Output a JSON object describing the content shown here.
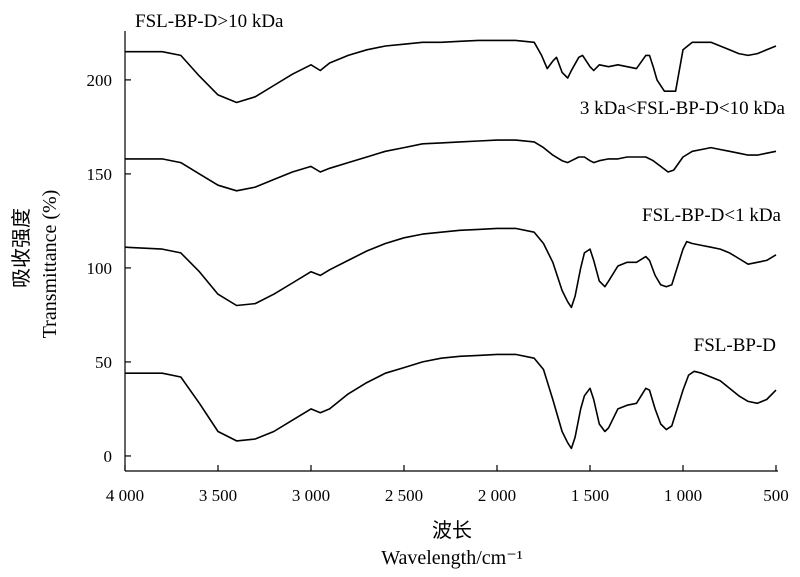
{
  "chart_data": {
    "type": "line",
    "xlabel_cn": "波长",
    "xlabel": "Wavelength/cm⁻¹",
    "ylabel_cn": "吸收强度",
    "ylabel": "Transmittance (%)",
    "xlim": [
      4000,
      500
    ],
    "ylim": [
      -8,
      226
    ],
    "x_ticks": [
      4000,
      3500,
      3000,
      2500,
      2000,
      1500,
      1000,
      500
    ],
    "x_tick_labels": [
      "4 000",
      "3 500",
      "3 000",
      "2 500",
      "2 000",
      "1 500",
      "1 000",
      "500"
    ],
    "y_ticks": [
      0,
      50,
      100,
      150,
      200
    ],
    "y_tick_labels": [
      "0",
      "50",
      "100",
      "150",
      "200"
    ],
    "grid": false,
    "series": [
      {
        "name": "FSL-BP-D>10 kDa",
        "points": [
          [
            4000,
            215
          ],
          [
            3800,
            215
          ],
          [
            3700,
            213
          ],
          [
            3600,
            202
          ],
          [
            3500,
            192
          ],
          [
            3400,
            188
          ],
          [
            3300,
            191
          ],
          [
            3200,
            197
          ],
          [
            3100,
            203
          ],
          [
            3000,
            208
          ],
          [
            2950,
            205
          ],
          [
            2900,
            209
          ],
          [
            2800,
            213
          ],
          [
            2700,
            216
          ],
          [
            2600,
            218
          ],
          [
            2500,
            219
          ],
          [
            2400,
            220
          ],
          [
            2300,
            220
          ],
          [
            2200,
            220.5
          ],
          [
            2100,
            221
          ],
          [
            2000,
            221
          ],
          [
            1900,
            221
          ],
          [
            1800,
            220
          ],
          [
            1760,
            213
          ],
          [
            1730,
            206
          ],
          [
            1700,
            210
          ],
          [
            1680,
            212
          ],
          [
            1650,
            204
          ],
          [
            1620,
            201
          ],
          [
            1600,
            205
          ],
          [
            1560,
            212
          ],
          [
            1540,
            213
          ],
          [
            1500,
            207
          ],
          [
            1480,
            205
          ],
          [
            1450,
            208
          ],
          [
            1400,
            207
          ],
          [
            1350,
            208
          ],
          [
            1300,
            207
          ],
          [
            1250,
            206
          ],
          [
            1200,
            213
          ],
          [
            1180,
            213
          ],
          [
            1160,
            207
          ],
          [
            1140,
            200
          ],
          [
            1100,
            194
          ],
          [
            1060,
            194
          ],
          [
            1040,
            194
          ],
          [
            1000,
            216
          ],
          [
            950,
            220
          ],
          [
            900,
            220
          ],
          [
            850,
            220
          ],
          [
            800,
            218
          ],
          [
            750,
            216
          ],
          [
            700,
            214
          ],
          [
            650,
            213
          ],
          [
            600,
            214
          ],
          [
            550,
            216
          ],
          [
            500,
            218
          ]
        ]
      },
      {
        "name": "3 kDa<FSL-BP-D<10 kDa",
        "points": [
          [
            4000,
            158
          ],
          [
            3800,
            158
          ],
          [
            3700,
            156
          ],
          [
            3600,
            150
          ],
          [
            3500,
            144
          ],
          [
            3400,
            141
          ],
          [
            3300,
            143
          ],
          [
            3200,
            147
          ],
          [
            3100,
            151
          ],
          [
            3000,
            154
          ],
          [
            2950,
            151
          ],
          [
            2900,
            153
          ],
          [
            2800,
            156
          ],
          [
            2700,
            159
          ],
          [
            2600,
            162
          ],
          [
            2500,
            164
          ],
          [
            2400,
            166
          ],
          [
            2300,
            166.5
          ],
          [
            2200,
            167
          ],
          [
            2100,
            167.5
          ],
          [
            2000,
            168
          ],
          [
            1900,
            168
          ],
          [
            1800,
            167
          ],
          [
            1750,
            164
          ],
          [
            1700,
            160
          ],
          [
            1650,
            157
          ],
          [
            1620,
            156
          ],
          [
            1600,
            157
          ],
          [
            1560,
            159
          ],
          [
            1530,
            159
          ],
          [
            1500,
            157
          ],
          [
            1480,
            156
          ],
          [
            1450,
            157
          ],
          [
            1400,
            158
          ],
          [
            1350,
            158
          ],
          [
            1300,
            159
          ],
          [
            1250,
            159
          ],
          [
            1200,
            159
          ],
          [
            1160,
            157
          ],
          [
            1120,
            154
          ],
          [
            1080,
            151
          ],
          [
            1050,
            152
          ],
          [
            1000,
            159
          ],
          [
            950,
            162
          ],
          [
            900,
            163
          ],
          [
            850,
            164
          ],
          [
            800,
            163
          ],
          [
            750,
            162
          ],
          [
            700,
            161
          ],
          [
            650,
            160
          ],
          [
            600,
            160
          ],
          [
            550,
            161
          ],
          [
            500,
            162
          ]
        ]
      },
      {
        "name": "FSL-BP-D<1 kDa",
        "points": [
          [
            4000,
            111
          ],
          [
            3800,
            110
          ],
          [
            3700,
            108
          ],
          [
            3600,
            98
          ],
          [
            3500,
            86
          ],
          [
            3400,
            80
          ],
          [
            3300,
            81
          ],
          [
            3200,
            86
          ],
          [
            3100,
            92
          ],
          [
            3000,
            98
          ],
          [
            2950,
            96
          ],
          [
            2900,
            99
          ],
          [
            2800,
            104
          ],
          [
            2700,
            109
          ],
          [
            2600,
            113
          ],
          [
            2500,
            116
          ],
          [
            2400,
            118
          ],
          [
            2300,
            119
          ],
          [
            2200,
            120
          ],
          [
            2100,
            120.5
          ],
          [
            2000,
            121
          ],
          [
            1900,
            121
          ],
          [
            1800,
            119
          ],
          [
            1750,
            113
          ],
          [
            1700,
            103
          ],
          [
            1650,
            88
          ],
          [
            1620,
            82
          ],
          [
            1600,
            79
          ],
          [
            1580,
            85
          ],
          [
            1550,
            100
          ],
          [
            1530,
            108
          ],
          [
            1500,
            110
          ],
          [
            1480,
            104
          ],
          [
            1450,
            93
          ],
          [
            1420,
            90
          ],
          [
            1400,
            93
          ],
          [
            1350,
            101
          ],
          [
            1300,
            103
          ],
          [
            1250,
            103
          ],
          [
            1200,
            106
          ],
          [
            1180,
            104
          ],
          [
            1150,
            96
          ],
          [
            1120,
            91
          ],
          [
            1090,
            90
          ],
          [
            1060,
            91
          ],
          [
            1000,
            110
          ],
          [
            980,
            114
          ],
          [
            950,
            113
          ],
          [
            900,
            112
          ],
          [
            850,
            111
          ],
          [
            800,
            110
          ],
          [
            750,
            108
          ],
          [
            700,
            105
          ],
          [
            650,
            102
          ],
          [
            600,
            103
          ],
          [
            550,
            104
          ],
          [
            500,
            107
          ]
        ]
      },
      {
        "name": "FSL-BP-D",
        "points": [
          [
            4000,
            44
          ],
          [
            3800,
            44
          ],
          [
            3700,
            42
          ],
          [
            3600,
            28
          ],
          [
            3500,
            13
          ],
          [
            3400,
            8
          ],
          [
            3300,
            9
          ],
          [
            3200,
            13
          ],
          [
            3100,
            19
          ],
          [
            3000,
            25
          ],
          [
            2950,
            23
          ],
          [
            2900,
            25
          ],
          [
            2800,
            33
          ],
          [
            2700,
            39
          ],
          [
            2600,
            44
          ],
          [
            2500,
            47
          ],
          [
            2400,
            50
          ],
          [
            2300,
            52
          ],
          [
            2200,
            53
          ],
          [
            2100,
            53.5
          ],
          [
            2000,
            54
          ],
          [
            1900,
            54
          ],
          [
            1800,
            52
          ],
          [
            1750,
            46
          ],
          [
            1700,
            30
          ],
          [
            1650,
            13
          ],
          [
            1620,
            7
          ],
          [
            1600,
            4
          ],
          [
            1580,
            10
          ],
          [
            1550,
            25
          ],
          [
            1530,
            32
          ],
          [
            1500,
            36
          ],
          [
            1480,
            30
          ],
          [
            1450,
            17
          ],
          [
            1420,
            13
          ],
          [
            1400,
            15
          ],
          [
            1350,
            25
          ],
          [
            1300,
            27
          ],
          [
            1250,
            28
          ],
          [
            1200,
            36
          ],
          [
            1180,
            35
          ],
          [
            1150,
            25
          ],
          [
            1120,
            17
          ],
          [
            1090,
            14
          ],
          [
            1060,
            16
          ],
          [
            1000,
            35
          ],
          [
            970,
            43
          ],
          [
            940,
            45
          ],
          [
            900,
            44
          ],
          [
            850,
            42
          ],
          [
            800,
            40
          ],
          [
            750,
            36
          ],
          [
            700,
            32
          ],
          [
            650,
            29
          ],
          [
            600,
            28
          ],
          [
            550,
            30
          ],
          [
            500,
            35
          ]
        ]
      }
    ]
  }
}
